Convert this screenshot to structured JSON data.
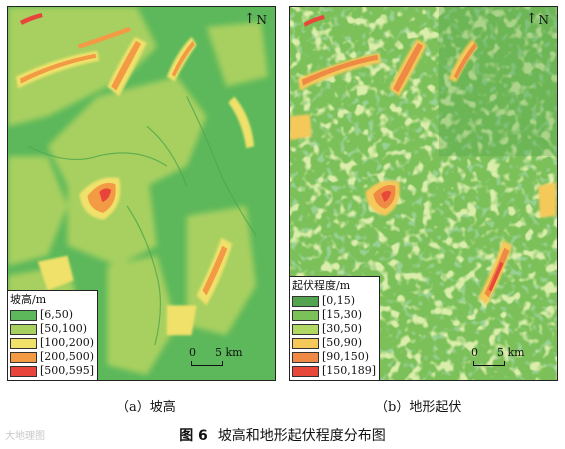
{
  "north_label": "N",
  "maps": [
    {
      "id": "a",
      "legend_title": "坡高/m",
      "legend": [
        {
          "label": "[6,50)",
          "color": "#5cb85a"
        },
        {
          "label": "[50,100)",
          "color": "#a8d060"
        },
        {
          "label": "[100,200)",
          "color": "#efe16a"
        },
        {
          "label": "[200,500)",
          "color": "#f39a45"
        },
        {
          "label": "[500,595]",
          "color": "#e8443c"
        }
      ],
      "caption": "（a）坡高"
    },
    {
      "id": "b",
      "legend_title": "起伏程度/m",
      "legend": [
        {
          "label": "[0,15)",
          "color": "#52a44e"
        },
        {
          "label": "[15,30)",
          "color": "#7cc05a"
        },
        {
          "label": "[30,50)",
          "color": "#b2d864"
        },
        {
          "label": "[50,90)",
          "color": "#f4c95a"
        },
        {
          "label": "[90,150)",
          "color": "#ee8a44"
        },
        {
          "label": "[150,189]",
          "color": "#e8483a"
        }
      ],
      "caption": "（b）地形起伏"
    }
  ],
  "scale": {
    "zero": "0",
    "distance": "5 km"
  },
  "figure": {
    "number": "图 6",
    "title": "坡高和地形起伏程度分布图"
  },
  "watermark": "大地理图"
}
